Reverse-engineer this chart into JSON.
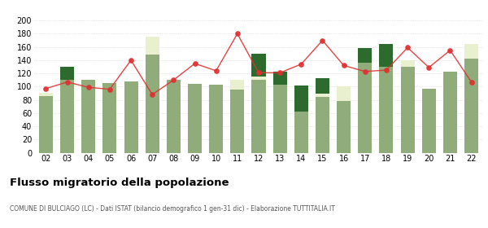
{
  "years": [
    "02",
    "03",
    "04",
    "05",
    "06",
    "07",
    "08",
    "09",
    "10",
    "11",
    "12",
    "13",
    "14",
    "15",
    "16",
    "17",
    "18",
    "19",
    "20",
    "21",
    "22"
  ],
  "iscritti_altri_comuni": [
    86,
    110,
    110,
    105,
    108,
    148,
    110,
    104,
    103,
    95,
    110,
    103,
    62,
    85,
    78,
    136,
    130,
    130,
    97,
    123,
    142
  ],
  "iscritti_estero": [
    5,
    0,
    0,
    0,
    0,
    28,
    0,
    0,
    0,
    15,
    5,
    0,
    0,
    5,
    23,
    0,
    0,
    10,
    0,
    0,
    22
  ],
  "iscritti_altri": [
    0,
    20,
    0,
    0,
    0,
    0,
    0,
    0,
    0,
    0,
    35,
    20,
    40,
    23,
    0,
    22,
    35,
    0,
    0,
    0,
    0
  ],
  "cancellati": [
    97,
    107,
    99,
    96,
    140,
    88,
    110,
    135,
    124,
    180,
    121,
    121,
    134,
    170,
    132,
    123,
    125,
    159,
    129,
    155,
    107
  ],
  "color_altri_comuni": "#8fac7a",
  "color_estero": "#e8f0d0",
  "color_altri": "#2d6a2d",
  "color_cancellati": "#e03030",
  "title": "Flusso migratorio della popolazione",
  "subtitle": "COMUNE DI BULCIAGO (LC) - Dati ISTAT (bilancio demografico 1 gen-31 dic) - Elaborazione TUTTITALIA.IT",
  "ylim": [
    0,
    200
  ],
  "yticks": [
    0,
    20,
    40,
    60,
    80,
    100,
    120,
    140,
    160,
    180,
    200
  ],
  "fig_width": 6.0,
  "fig_height": 2.8
}
